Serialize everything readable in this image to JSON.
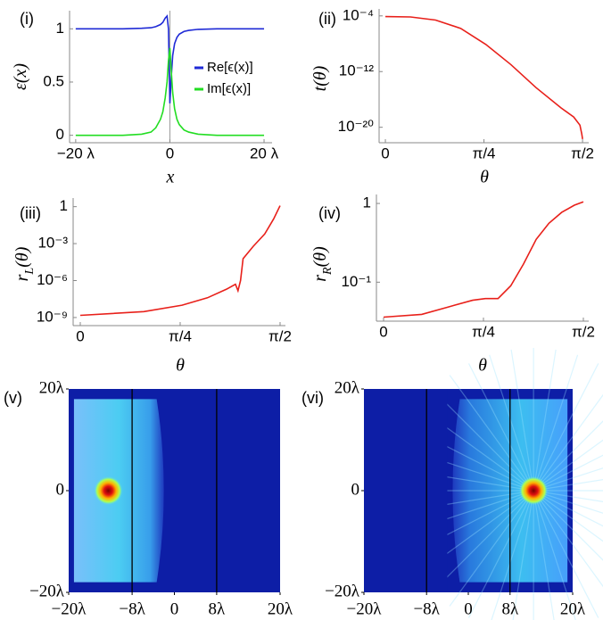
{
  "chart_data": [
    {
      "type": "line",
      "panel_label": "(i)",
      "x_label": "x",
      "y_label": [
        "ε(x)"
      ],
      "xlim": [
        -21.3,
        21.7
      ],
      "ylim": [
        -0.07,
        1.17
      ],
      "xticks": [
        {
          "value": -20,
          "label": "−20 λ"
        },
        0,
        {
          "value": 20,
          "label": "20 λ"
        }
      ],
      "yticks": [
        0,
        0.5,
        1
      ],
      "x": [
        -20,
        -10,
        -6,
        -4,
        -3,
        -2,
        -1.5,
        -1,
        -0.6,
        -0.3,
        0,
        0.3,
        0.6,
        1,
        1.5,
        2,
        3,
        4,
        6,
        10,
        20
      ],
      "series": [
        {
          "name": "Re[ϵ(x)]",
          "color": "#1f2ad6",
          "values": [
            1,
            1,
            1.005,
            1.01,
            1.02,
            1.04,
            1.06,
            1.1,
            1.12,
            1.0,
            0.3,
            0.55,
            0.75,
            0.86,
            0.92,
            0.95,
            0.975,
            0.985,
            0.995,
            1,
            1
          ]
        },
        {
          "name": "Im[ϵ(x)]",
          "color": "#22dd22",
          "values": [
            0,
            0,
            0.01,
            0.03,
            0.07,
            0.15,
            0.22,
            0.35,
            0.5,
            0.7,
            0.82,
            0.6,
            0.4,
            0.25,
            0.15,
            0.1,
            0.05,
            0.03,
            0.01,
            0,
            0
          ]
        }
      ]
    },
    {
      "type": "line",
      "panel_label": "(ii)",
      "x_label": "θ",
      "y_label": [
        "t(θ)"
      ],
      "log_y": true,
      "xlim": [
        -0.05,
        1.62
      ],
      "ylim": [
        6e-23,
        0.001
      ],
      "xticks": [
        0,
        {
          "value": 0.7854,
          "label": "π/4"
        },
        {
          "value": 1.5708,
          "label": "π/2"
        }
      ],
      "yticks": [
        {
          "value": 0.0001,
          "label": "10⁻⁴"
        },
        {
          "value": 1e-12,
          "label": "10⁻¹²"
        },
        {
          "value": 1e-20,
          "label": "10⁻²⁰"
        }
      ],
      "x": [
        0,
        0.2,
        0.4,
        0.6,
        0.8,
        1.0,
        1.2,
        1.4,
        1.5,
        1.55,
        1.565,
        1.5708
      ],
      "series": [
        {
          "color": "#e8201a",
          "values": [
            8e-05,
            7e-05,
            2.5e-05,
            1.6e-06,
            8e-09,
            1e-11,
            5e-15,
            6e-18,
            3e-19,
            2e-20,
            1e-21,
            2e-22
          ]
        }
      ]
    },
    {
      "type": "line",
      "panel_label": "(iii)",
      "x_label": "θ",
      "y_label": [
        "r",
        "L",
        "(θ)"
      ],
      "log_y": true,
      "xlim": [
        -0.056,
        1.613
      ],
      "ylim": [
        2.2e-10,
        5
      ],
      "xticks": [
        0,
        {
          "value": 0.7854,
          "label": "π/4"
        },
        {
          "value": 1.5708,
          "label": "π/2"
        }
      ],
      "yticks": [
        1,
        {
          "value": 0.001,
          "label": "10⁻³"
        },
        {
          "value": 1e-06,
          "label": "10⁻⁶"
        },
        {
          "value": 1e-09,
          "label": "10⁻⁹"
        }
      ],
      "x": [
        0,
        0.5,
        0.8,
        1.0,
        1.15,
        1.22,
        1.24,
        1.26,
        1.28,
        1.36,
        1.45,
        1.52,
        1.5708
      ],
      "series": [
        {
          "color": "#e8201a",
          "values": [
            1.5e-09,
            3e-09,
            1e-08,
            4e-08,
            2e-07,
            5e-07,
            1.5e-07,
            1e-06,
            6e-05,
            0.0006,
            0.006,
            0.1,
            1.2
          ]
        }
      ]
    },
    {
      "type": "line",
      "panel_label": "(iv)",
      "x_label": "θ",
      "y_label": [
        "r",
        "R",
        "(θ)"
      ],
      "log_y": true,
      "xlim": [
        -0.056,
        1.613
      ],
      "ylim": [
        0.032,
        1.3
      ],
      "xticks": [
        0,
        {
          "value": 0.7854,
          "label": "π/4"
        },
        {
          "value": 1.5708,
          "label": "π/2"
        }
      ],
      "yticks": [
        1,
        {
          "value": 0.1,
          "label": "10⁻¹"
        }
      ],
      "x": [
        0,
        0.3,
        0.5,
        0.7,
        0.8,
        0.9,
        1.0,
        1.1,
        1.2,
        1.3,
        1.4,
        1.5,
        1.5708
      ],
      "series": [
        {
          "color": "#e8201a",
          "values": [
            0.036,
            0.039,
            0.048,
            0.059,
            0.062,
            0.062,
            0.09,
            0.17,
            0.35,
            0.56,
            0.77,
            0.95,
            1.05
          ]
        }
      ]
    },
    {
      "type": "heatmap",
      "panel_label": "(v)",
      "xlim": [
        -20,
        20
      ],
      "ylim": [
        -20,
        20
      ],
      "xticks": [
        {
          "value": -20,
          "label": "−20λ"
        },
        {
          "value": -8,
          "label": "−8λ"
        },
        0,
        {
          "value": 8,
          "label": "8λ"
        },
        {
          "value": 20,
          "label": "20λ"
        }
      ],
      "yticks": [
        {
          "value": 20,
          "label": "20λ"
        },
        0,
        {
          "value": -20,
          "label": "−20λ"
        }
      ],
      "vlines": [
        -8,
        8
      ],
      "source": [
        -12.5,
        0
      ]
    },
    {
      "type": "heatmap",
      "panel_label": "(vi)",
      "xlim": [
        -20,
        20
      ],
      "ylim": [
        -20,
        20
      ],
      "xticks": [
        {
          "value": -20,
          "label": "−20λ"
        },
        {
          "value": -8,
          "label": "−8λ"
        },
        0,
        {
          "value": 8,
          "label": "8λ"
        },
        {
          "value": 20,
          "label": "20λ"
        }
      ],
      "yticks": [
        {
          "value": 20,
          "label": "20λ"
        },
        0,
        {
          "value": -20,
          "label": "−20λ"
        }
      ],
      "vlines": [
        -8,
        8
      ],
      "source": [
        12.5,
        0
      ]
    }
  ]
}
